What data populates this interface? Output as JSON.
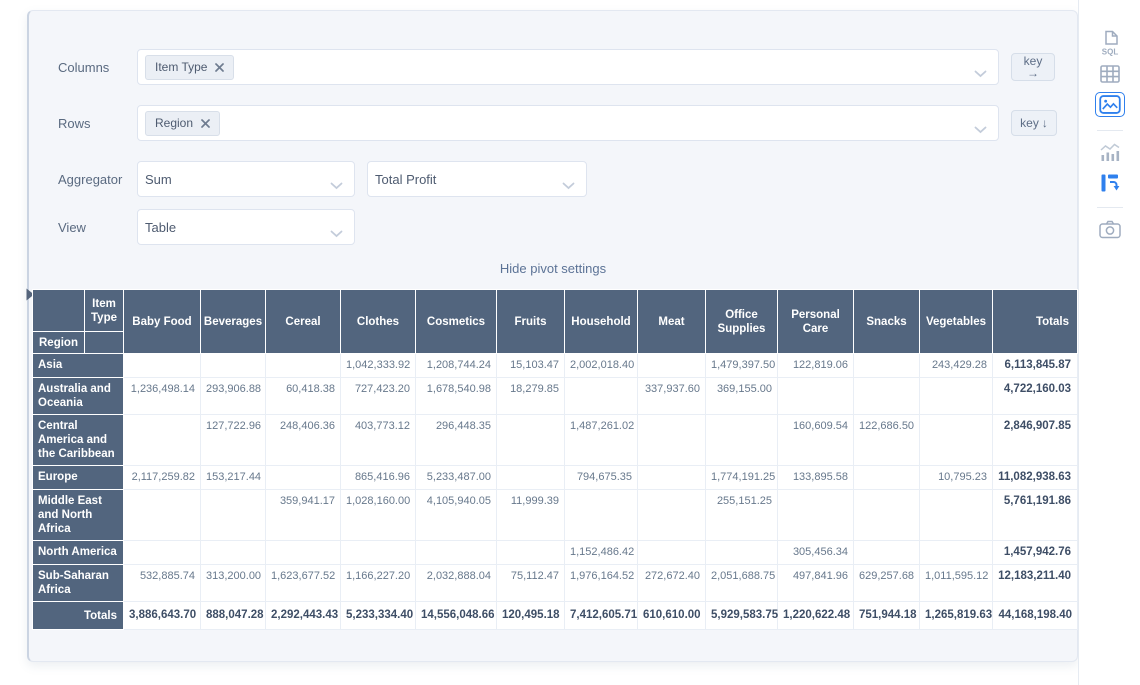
{
  "panel": {
    "columns_label": "Columns",
    "rows_label": "Rows",
    "aggregator_label": "Aggregator",
    "view_label": "View",
    "columns_tag": "Item Type",
    "rows_tag": "Region",
    "aggregator_value": "Sum",
    "aggregator_arg": "Total Profit",
    "view_value": "Table",
    "col_key": {
      "text": "key",
      "arrow": "→"
    },
    "row_key": {
      "text": "key",
      "arrow": "↓"
    },
    "hide_link": "Hide pivot settings"
  },
  "sidebar": {
    "active_color": "#2F80ED",
    "inactive_color": "#9FACBF",
    "icons": [
      {
        "id": "sql",
        "label": "SQL",
        "active": false
      },
      {
        "id": "table",
        "active": false
      },
      {
        "id": "image",
        "active": true
      },
      {
        "id": "chart",
        "active": false
      },
      {
        "id": "pivot",
        "active": true
      },
      {
        "id": "camera",
        "active": false
      }
    ]
  },
  "pivot_table": {
    "header_bg": "#52657E",
    "col_axis_label": "Item Type",
    "row_axis_label": "Region",
    "totals_label": "Totals",
    "columns": [
      "Baby Food",
      "Beverages",
      "Cereal",
      "Clothes",
      "Cosmetics",
      "Fruits",
      "Household",
      "Meat",
      "Office Supplies",
      "Personal Care",
      "Snacks",
      "Vegetables"
    ],
    "rows": [
      {
        "label": "Asia",
        "values": [
          "",
          "",
          "",
          "1,042,333.92",
          "1,208,744.24",
          "15,103.47",
          "2,002,018.40",
          "",
          "1,479,397.50",
          "122,819.06",
          "",
          "243,429.28"
        ],
        "total": "6,113,845.87"
      },
      {
        "label": "Australia and Oceania",
        "values": [
          "1,236,498.14",
          "293,906.88",
          "60,418.38",
          "727,423.20",
          "1,678,540.98",
          "18,279.85",
          "",
          "337,937.60",
          "369,155.00",
          "",
          "",
          ""
        ],
        "total": "4,722,160.03"
      },
      {
        "label": "Central America and the Caribbean",
        "values": [
          "",
          "127,722.96",
          "248,406.36",
          "403,773.12",
          "296,448.35",
          "",
          "1,487,261.02",
          "",
          "",
          "160,609.54",
          "122,686.50",
          ""
        ],
        "total": "2,846,907.85"
      },
      {
        "label": "Europe",
        "values": [
          "2,117,259.82",
          "153,217.44",
          "",
          "865,416.96",
          "5,233,487.00",
          "",
          "794,675.35",
          "",
          "1,774,191.25",
          "133,895.58",
          "",
          "10,795.23"
        ],
        "total": "11,082,938.63"
      },
      {
        "label": "Middle East and North Africa",
        "values": [
          "",
          "",
          "359,941.17",
          "1,028,160.00",
          "4,105,940.05",
          "11,999.39",
          "",
          "",
          "255,151.25",
          "",
          "",
          ""
        ],
        "total": "5,761,191.86"
      },
      {
        "label": "North America",
        "values": [
          "",
          "",
          "",
          "",
          "",
          "",
          "1,152,486.42",
          "",
          "",
          "305,456.34",
          "",
          ""
        ],
        "total": "1,457,942.76"
      },
      {
        "label": "Sub-Saharan Africa",
        "values": [
          "532,885.74",
          "313,200.00",
          "1,623,677.52",
          "1,166,227.20",
          "2,032,888.04",
          "75,112.47",
          "1,976,164.52",
          "272,672.40",
          "2,051,688.75",
          "497,841.96",
          "629,257.68",
          "1,011,595.12"
        ],
        "total": "12,183,211.40"
      }
    ],
    "totals_row": {
      "label": "Totals",
      "values": [
        "3,886,643.70",
        "888,047.28",
        "2,292,443.43",
        "5,233,334.40",
        "14,556,048.66",
        "120,495.18",
        "7,412,605.71",
        "610,610.00",
        "5,929,583.75",
        "1,220,622.48",
        "751,944.18",
        "1,265,819.63"
      ],
      "grand_total": "44,168,198.40"
    }
  }
}
